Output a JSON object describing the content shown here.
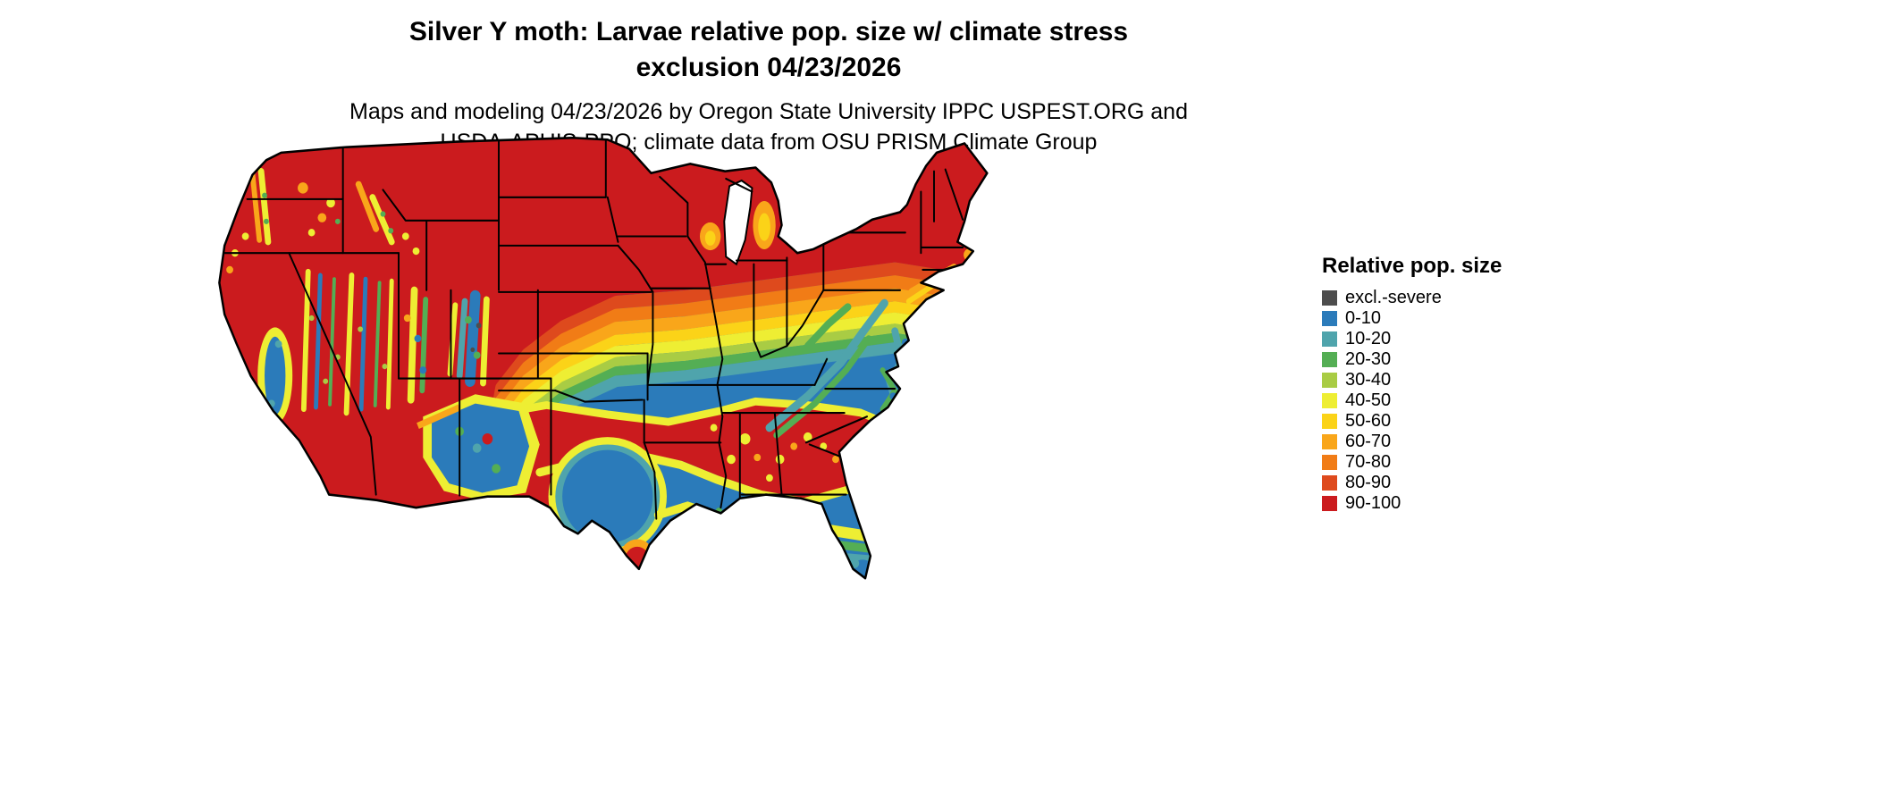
{
  "header": {
    "title_line1": "Silver Y moth: Larvae relative pop. size w/ climate stress",
    "title_line2": "exclusion 04/23/2026",
    "subtitle_line1": "Maps and modeling 04/23/2026 by Oregon State University IPPC USPEST.ORG and",
    "subtitle_line2": "USDA-APHIS-PPQ; climate data from OSU PRISM Climate Group"
  },
  "map": {
    "area": "Contiguous United States",
    "kind": "raster choropleth of relative population size"
  },
  "legend": {
    "title": "Relative pop. size",
    "items": [
      {
        "label": "excl.-severe",
        "color": "#4D4D4D"
      },
      {
        "label": "0-10",
        "color": "#2B7BBA"
      },
      {
        "label": "10-20",
        "color": "#4FA4AC"
      },
      {
        "label": "20-30",
        "color": "#54AE54"
      },
      {
        "label": "30-40",
        "color": "#A9CC44"
      },
      {
        "label": "40-50",
        "color": "#EEEE33"
      },
      {
        "label": "50-60",
        "color": "#FBD318"
      },
      {
        "label": "60-70",
        "color": "#F9A61A"
      },
      {
        "label": "70-80",
        "color": "#F17C16"
      },
      {
        "label": "80-90",
        "color": "#DE4A1D"
      },
      {
        "label": "90-100",
        "color": "#CB1B1E"
      }
    ]
  }
}
